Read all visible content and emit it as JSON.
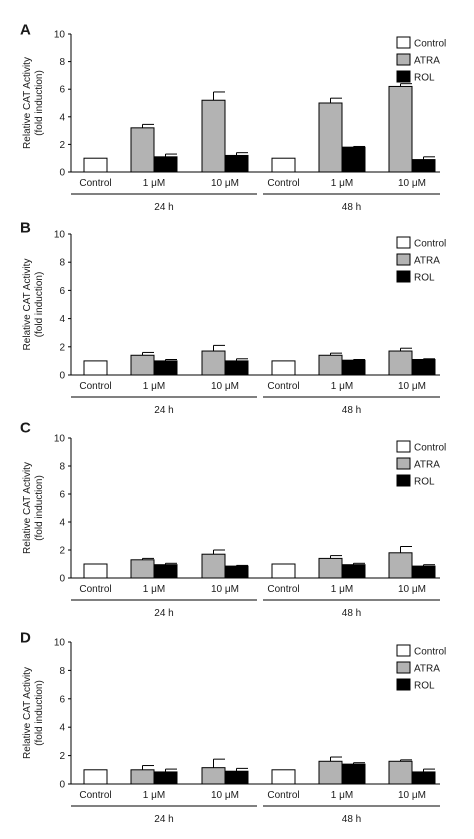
{
  "colors": {
    "control": "#ffffff",
    "atra": "#b3b3b3",
    "rol": "#000000",
    "axis": "#000000"
  },
  "legend_labels": [
    "Control",
    "ATRA",
    "ROL"
  ],
  "ylabel_line1": "Relative CAT Activity",
  "ylabel_line2": "(fold induction)",
  "chart_data": [
    {
      "panel": "A",
      "type": "bar",
      "ylim": [
        0,
        10
      ],
      "yticks": [
        0,
        2,
        4,
        6,
        8,
        10
      ],
      "groups": [
        {
          "label": "Control",
          "bars": [
            {
              "series": "Control",
              "value": 1.0
            }
          ]
        },
        {
          "label": "1 μM",
          "bars": [
            {
              "series": "ATRA",
              "value": 3.2,
              "err": 0.25
            },
            {
              "series": "ROL",
              "value": 1.1,
              "err": 0.2
            }
          ]
        },
        {
          "label": "10 μM",
          "bars": [
            {
              "series": "ATRA",
              "value": 5.2,
              "err": 0.6
            },
            {
              "series": "ROL",
              "value": 1.2,
              "err": 0.2
            }
          ]
        },
        {
          "label": "Control",
          "bars": [
            {
              "series": "Control",
              "value": 1.0
            }
          ]
        },
        {
          "label": "1 μM",
          "bars": [
            {
              "series": "ATRA",
              "value": 5.0,
              "err": 0.35
            },
            {
              "series": "ROL",
              "value": 1.8,
              "err": 0.05
            }
          ]
        },
        {
          "label": "10 μM",
          "bars": [
            {
              "series": "ATRA",
              "value": 6.2,
              "err": 0.2
            },
            {
              "series": "ROL",
              "value": 0.9,
              "err": 0.2
            }
          ]
        }
      ],
      "time_labels": [
        "24 h",
        "48 h"
      ]
    },
    {
      "panel": "B",
      "type": "bar",
      "ylim": [
        0,
        10
      ],
      "yticks": [
        0,
        2,
        4,
        6,
        8,
        10
      ],
      "groups": [
        {
          "label": "Control",
          "bars": [
            {
              "series": "Control",
              "value": 1.0
            }
          ]
        },
        {
          "label": "1 μM",
          "bars": [
            {
              "series": "ATRA",
              "value": 1.4,
              "err": 0.2
            },
            {
              "series": "ROL",
              "value": 1.0,
              "err": 0.1
            }
          ]
        },
        {
          "label": "10 μM",
          "bars": [
            {
              "series": "ATRA",
              "value": 1.7,
              "err": 0.4
            },
            {
              "series": "ROL",
              "value": 1.0,
              "err": 0.15
            }
          ]
        },
        {
          "label": "Control",
          "bars": [
            {
              "series": "Control",
              "value": 1.0
            }
          ]
        },
        {
          "label": "1 μM",
          "bars": [
            {
              "series": "ATRA",
              "value": 1.4,
              "err": 0.15
            },
            {
              "series": "ROL",
              "value": 1.05,
              "err": 0.05
            }
          ]
        },
        {
          "label": "10 μM",
          "bars": [
            {
              "series": "ATRA",
              "value": 1.7,
              "err": 0.2
            },
            {
              "series": "ROL",
              "value": 1.1,
              "err": 0.05
            }
          ]
        }
      ],
      "time_labels": [
        "24 h",
        "48 h"
      ]
    },
    {
      "panel": "C",
      "type": "bar",
      "ylim": [
        0,
        10
      ],
      "yticks": [
        0,
        2,
        4,
        6,
        8,
        10
      ],
      "groups": [
        {
          "label": "Control",
          "bars": [
            {
              "series": "Control",
              "value": 1.0
            }
          ]
        },
        {
          "label": "1 μM",
          "bars": [
            {
              "series": "ATRA",
              "value": 1.3,
              "err": 0.1
            },
            {
              "series": "ROL",
              "value": 0.95,
              "err": 0.1
            }
          ]
        },
        {
          "label": "10 μM",
          "bars": [
            {
              "series": "ATRA",
              "value": 1.7,
              "err": 0.3
            },
            {
              "series": "ROL",
              "value": 0.85,
              "err": 0.05
            }
          ]
        },
        {
          "label": "Control",
          "bars": [
            {
              "series": "Control",
              "value": 1.0
            }
          ]
        },
        {
          "label": "1 μM",
          "bars": [
            {
              "series": "ATRA",
              "value": 1.4,
              "err": 0.2
            },
            {
              "series": "ROL",
              "value": 0.95,
              "err": 0.1
            }
          ]
        },
        {
          "label": "10 μM",
          "bars": [
            {
              "series": "ATRA",
              "value": 1.8,
              "err": 0.45
            },
            {
              "series": "ROL",
              "value": 0.85,
              "err": 0.1
            }
          ]
        }
      ],
      "time_labels": [
        "24 h",
        "48 h"
      ]
    },
    {
      "panel": "D",
      "type": "bar",
      "ylim": [
        0,
        10
      ],
      "yticks": [
        0,
        2,
        4,
        6,
        8,
        10
      ],
      "groups": [
        {
          "label": "Control",
          "bars": [
            {
              "series": "Control",
              "value": 1.0
            }
          ]
        },
        {
          "label": "1 μM",
          "bars": [
            {
              "series": "ATRA",
              "value": 1.0,
              "err": 0.3
            },
            {
              "series": "ROL",
              "value": 0.85,
              "err": 0.2
            }
          ]
        },
        {
          "label": "10 μM",
          "bars": [
            {
              "series": "ATRA",
              "value": 1.15,
              "err": 0.6
            },
            {
              "series": "ROL",
              "value": 0.9,
              "err": 0.2
            }
          ]
        },
        {
          "label": "Control",
          "bars": [
            {
              "series": "Control",
              "value": 1.0
            }
          ]
        },
        {
          "label": "1 μM",
          "bars": [
            {
              "series": "ATRA",
              "value": 1.6,
              "err": 0.3
            },
            {
              "series": "ROL",
              "value": 1.4,
              "err": 0.1
            }
          ]
        },
        {
          "label": "10 μM",
          "bars": [
            {
              "series": "ATRA",
              "value": 1.6,
              "err": 0.1
            },
            {
              "series": "ROL",
              "value": 0.85,
              "err": 0.2
            }
          ]
        }
      ],
      "time_labels": [
        "24 h",
        "48 h"
      ]
    }
  ]
}
